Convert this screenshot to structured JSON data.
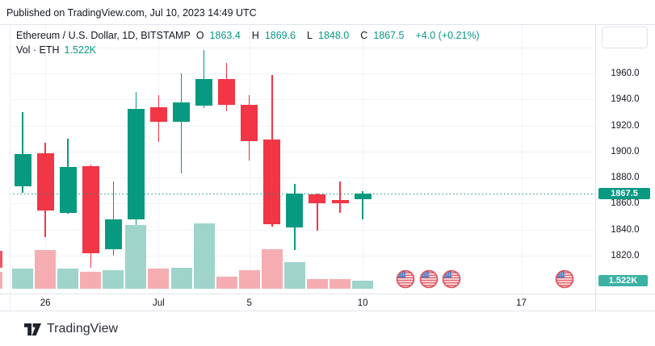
{
  "published_bar": {
    "text": "Published on TradingView.com, Jul 10, 2023 14:49 UTC"
  },
  "legend": {
    "symbol": "Ethereum / U.S. Dollar, 1D, BITSTAMP",
    "o_label": "O",
    "o_value": "1863.4",
    "h_label": "H",
    "h_value": "1869.6",
    "l_label": "L",
    "l_value": "1848.0",
    "c_label": "C",
    "c_value": "1867.5",
    "change": "+4.0 (+0.21%)",
    "vol_label": "Vol · ETH",
    "vol_value": "1.522K"
  },
  "footer": {
    "brand": "TradingView"
  },
  "chart_data": {
    "type": "candlestick",
    "title": "Ethereum / U.S. Dollar, 1D, BITSTAMP",
    "symbol": "Ethereum / U.S. Dollar",
    "interval": "1D",
    "exchange": "BITSTAMP",
    "last_quote": {
      "open": 1863.4,
      "high": 1869.6,
      "low": 1848.0,
      "close": 1867.5,
      "change_abs": 4.0,
      "change_pct": 0.21
    },
    "current_price": 1867.5,
    "current_price_label": "1867.5",
    "current_volume_label": "1.522K",
    "candles": [
      {
        "date": "Jun 25",
        "open": 1873,
        "high": 1930,
        "low": 1868,
        "close": 1898,
        "volume_k": 3.8
      },
      {
        "date": "Jun 26",
        "open": 1899,
        "high": 1907,
        "low": 1834,
        "close": 1855,
        "volume_k": 7.3
      },
      {
        "date": "Jun 27",
        "open": 1853,
        "high": 1910,
        "low": 1852,
        "close": 1888,
        "volume_k": 3.8
      },
      {
        "date": "Jun 28",
        "open": 1889,
        "high": 1890,
        "low": 1811,
        "close": 1822,
        "volume_k": 3.2
      },
      {
        "date": "Jun 29",
        "open": 1825,
        "high": 1877,
        "low": 1820,
        "close": 1848,
        "volume_k": 3.5
      },
      {
        "date": "Jun 30",
        "open": 1848,
        "high": 1946,
        "low": 1819,
        "close": 1933,
        "volume_k": 12.0
      },
      {
        "date": "Jul 1",
        "open": 1934,
        "high": 1943,
        "low": 1907,
        "close": 1923,
        "volume_k": 3.8
      },
      {
        "date": "Jul 2",
        "open": 1923,
        "high": 1960,
        "low": 1883,
        "close": 1938,
        "volume_k": 4.0
      },
      {
        "date": "Jul 3",
        "open": 1935,
        "high": 1978,
        "low": 1933,
        "close": 1956,
        "volume_k": 12.3
      },
      {
        "date": "Jul 4",
        "open": 1956,
        "high": 1968,
        "low": 1931,
        "close": 1936,
        "volume_k": 2.3
      },
      {
        "date": "Jul 5",
        "open": 1936,
        "high": 1943,
        "low": 1893,
        "close": 1908,
        "volume_k": 3.5
      },
      {
        "date": "Jul 6",
        "open": 1909,
        "high": 1959,
        "low": 1842,
        "close": 1844,
        "volume_k": 7.5
      },
      {
        "date": "Jul 7",
        "open": 1842,
        "high": 1875,
        "low": 1824,
        "close": 1868,
        "volume_k": 5.0
      },
      {
        "date": "Jul 8",
        "open": 1867,
        "high": 1868,
        "low": 1839,
        "close": 1860,
        "volume_k": 1.8
      },
      {
        "date": "Jul 9",
        "open": 1863,
        "high": 1877,
        "low": 1853,
        "close": 1860,
        "volume_k": 1.8
      },
      {
        "date": "Jul 10",
        "open": 1863.4,
        "high": 1869.6,
        "low": 1848.0,
        "close": 1867.5,
        "volume_k": 1.522
      }
    ],
    "left_clipped_candle": {
      "direction": "down",
      "body_top_price": 1824,
      "body_bottom_price": 1811,
      "volume_k": 3.2
    },
    "y_axis": {
      "tick_labels": [
        "1960.0",
        "1940.0",
        "1920.0",
        "1900.0",
        "1880.0",
        "1860.0",
        "1840.0",
        "1820.0"
      ],
      "tick_prices": [
        1960,
        1940,
        1920,
        1900,
        1880,
        1860,
        1840,
        1820
      ],
      "gridline_prices": [
        1980,
        1960,
        1940,
        1920,
        1900,
        1880,
        1860,
        1840,
        1820
      ],
      "visible_range": [
        1792,
        1998
      ]
    },
    "x_axis": {
      "labels": [
        {
          "text": "26",
          "candle_index": 1
        },
        {
          "text": "Jul",
          "candle_index": 6
        },
        {
          "text": "5",
          "candle_index": 10
        },
        {
          "text": "10",
          "candle_index": 15
        },
        {
          "text": "17",
          "candle_index": 22
        }
      ]
    },
    "event_markers": {
      "type": "us-economic-event",
      "flag": "US",
      "candle_indices": [
        16.9,
        17.9,
        18.9,
        23.9
      ]
    },
    "grid": true,
    "colors": {
      "up": "#089981",
      "down": "#f23645",
      "vol_up": "#9fd4cb",
      "vol_down": "#f5adb2",
      "price_line": "#089981",
      "price_badge_bg": "#089981",
      "volume_badge_bg": "#3cb2a4",
      "grid": "#f0f3fa",
      "border": "#e0e3eb"
    }
  }
}
